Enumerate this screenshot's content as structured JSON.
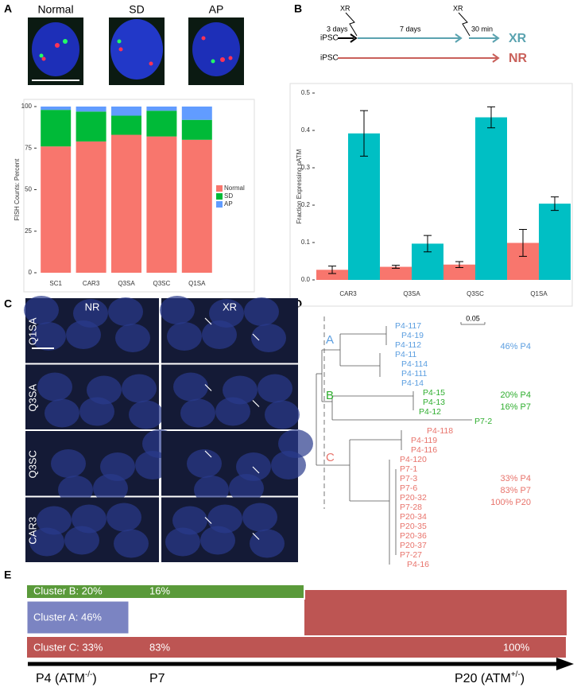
{
  "panel_labels": [
    "A",
    "B",
    "C",
    "D",
    "E"
  ],
  "fish_images": [
    "Normal",
    "SD",
    "AP"
  ],
  "chart_data": [
    {
      "type": "stacked-bar",
      "ylabel": "FISH Counts: Percent",
      "categories": [
        "SC1",
        "CAR3",
        "Q3SA",
        "Q3SC",
        "Q1SA"
      ],
      "series": [
        {
          "name": "Normal",
          "color": "#F8766D",
          "values": [
            76,
            79,
            83,
            82,
            80
          ]
        },
        {
          "name": "SD",
          "color": "#00BA38",
          "values": [
            22,
            18,
            11.5,
            15.5,
            12
          ]
        },
        {
          "name": "AP",
          "color": "#619CFF",
          "values": [
            2,
            3,
            5.5,
            2.5,
            8
          ]
        }
      ],
      "ylim": [
        0,
        100
      ],
      "yticks": [
        0,
        25,
        50,
        75,
        100
      ],
      "legend": "right"
    },
    {
      "type": "grouped-bar",
      "ylabel": "Fraction Expressing pATM",
      "categories": [
        "CAR3",
        "Q3SA",
        "Q3SC",
        "Q1SA"
      ],
      "series": [
        {
          "name": "NR",
          "color": "#F8766D",
          "values": [
            0.027,
            0.035,
            0.041,
            0.099
          ],
          "errors": [
            0.01,
            0.004,
            0.008,
            0.036
          ]
        },
        {
          "name": "XR",
          "color": "#00BFC4",
          "values": [
            0.392,
            0.097,
            0.435,
            0.204
          ],
          "errors": [
            0.061,
            0.022,
            0.028,
            0.018
          ]
        }
      ],
      "ylim": [
        0,
        0.5
      ],
      "yticks": [
        {
          "value": 0,
          "label": "0.0"
        },
        0.1,
        0.2,
        0.3,
        0.4,
        0.5
      ]
    }
  ],
  "schematic": {
    "start_1": "iPSC",
    "start_2": "iPSC",
    "interval_1": "3 days",
    "interval_2": "7 days",
    "interval_3": "30 min",
    "xr_1": "XR",
    "xr_2": "XR"
  },
  "micrographs": {
    "columns": [
      "NR",
      "XR"
    ],
    "rows": [
      "Q1SA",
      "Q3SA",
      "Q3SC",
      "CAR3"
    ]
  },
  "tree": {
    "scale": "0.05",
    "clusters": [
      {
        "label": "A",
        "color": "#5b9ee0",
        "leaves": [
          "P4-117",
          "P4-19",
          "P4-112",
          "P4-11",
          "P4-114",
          "P4-111",
          "P4-14"
        ],
        "notes": [
          "46% P4"
        ]
      },
      {
        "label": "B",
        "color": "#2fae2f",
        "leaves": [
          "P4-15",
          "P4-13",
          "P4-12",
          "P7-2"
        ],
        "notes": [
          "20% P4",
          "16% P7"
        ]
      },
      {
        "label": "C",
        "color": "#e8736b",
        "leaves": [
          "P4-118",
          "P4-119",
          "P4-116",
          "P4-120",
          "P7-1",
          "P7-3",
          "P7-6",
          "P20-32",
          "P7-28",
          "P20-34",
          "P20-35",
          "P20-36",
          "P20-37",
          "P7-27",
          "P4-16"
        ],
        "notes": [
          "33% P4",
          "83% P7",
          "100% P20"
        ]
      }
    ]
  },
  "timeline": {
    "bars": [
      {
        "label": "Cluster B: 20%",
        "later": "16%"
      },
      {
        "label": "Cluster A: 46%"
      },
      {
        "label": "Cluster C: 33%",
        "later": "83%",
        "final": "100%"
      }
    ],
    "axis": [
      {
        "text": "P4 (ATM",
        "sup": "-/-",
        "end": ")"
      },
      {
        "text": "P7"
      },
      {
        "text": "P20 (ATM",
        "sup": "+/-",
        "end": ")"
      }
    ]
  }
}
